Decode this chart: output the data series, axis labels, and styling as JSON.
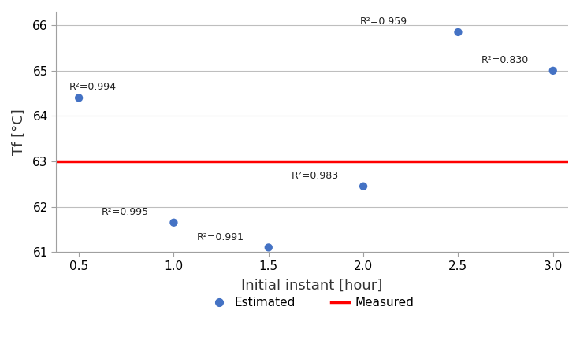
{
  "x": [
    0.5,
    1.0,
    1.5,
    2.0,
    2.5,
    3.0
  ],
  "y": [
    64.4,
    61.65,
    61.1,
    62.45,
    65.85,
    65.0
  ],
  "r2_labels": [
    "R²=0.994",
    "R²=0.995",
    "R²=0.991",
    "R²=0.983",
    "R²=0.959",
    "R²=0.830"
  ],
  "r2_offsets_x": [
    -0.05,
    -0.38,
    -0.38,
    -0.38,
    -0.52,
    -0.38
  ],
  "r2_offsets_y": [
    0.13,
    0.12,
    0.12,
    0.12,
    0.12,
    0.12
  ],
  "measured_y": 63.0,
  "dot_color": "#4472C4",
  "measured_color": "#FF0000",
  "xlabel": "Initial instant [hour]",
  "ylabel": "Tf [°C]",
  "ylim": [
    61.0,
    66.3
  ],
  "xlim": [
    0.38,
    3.08
  ],
  "yticks": [
    61,
    62,
    63,
    64,
    65,
    66
  ],
  "xticks": [
    0.5,
    1.0,
    1.5,
    2.0,
    2.5,
    3.0
  ],
  "legend_estimated": "Estimated",
  "legend_measured": "Measured",
  "marker_size": 55,
  "grid_color": "#BEBEBE",
  "background_color": "#FFFFFF",
  "font_size_ticks": 11,
  "font_size_labels": 13,
  "font_size_annot": 9
}
